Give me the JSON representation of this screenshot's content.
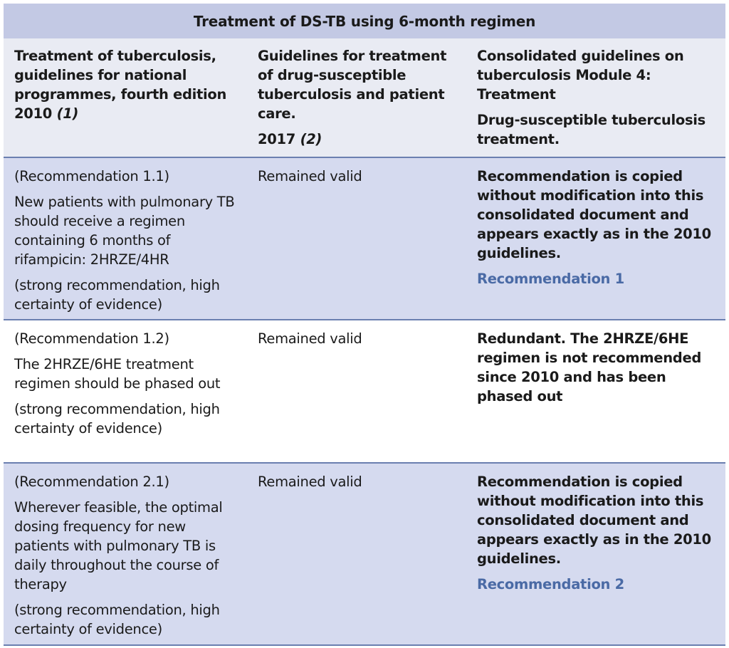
{
  "title": "Treatment of DS-TB using 6-month regimen",
  "headers": {
    "col1": {
      "text": "Treatment of tuberculosis, guidelines for national programmes, fourth edition 2010",
      "ref": "(1)"
    },
    "col2": {
      "text": "Guidelines for treatment of drug-susceptible tuberculosis and patient care.",
      "year": "2017",
      "ref": "(2)"
    },
    "col3": {
      "line1": "Consolidated guidelines on tuberculosis Module 4: Treatment",
      "line2": "Drug-susceptible tuberculosis treatment."
    }
  },
  "rows": [
    {
      "rec_id": "(Recommendation 1.1)",
      "rec_text": "New patients with pulmonary TB should receive a regimen containing 6 months of rifampicin: 2HRZE/4HR",
      "strength": "(strong recommendation, high certainty of evidence)",
      "status_2017": "Remained valid",
      "consolidated": "Recommendation is copied without modification into this consolidated document and appears exactly as in the 2010 guidelines.",
      "link": "Recommendation 1"
    },
    {
      "rec_id": "(Recommendation 1.2)",
      "rec_text": "The 2HRZE/6HE treatment regimen should be phased out",
      "strength": "(strong recommendation, high certainty of evidence)",
      "status_2017": "Remained valid",
      "consolidated": "Redundant. The 2HRZE/6HE regimen is not recommended since 2010 and has been phased out",
      "link": ""
    },
    {
      "rec_id": "(Recommendation 2.1)",
      "rec_text": "Wherever feasible, the optimal dosing frequency for new patients with pulmonary TB is daily throughout the course of therapy",
      "strength": "(strong recommendation, high certainty of evidence)",
      "status_2017": "Remained valid",
      "consolidated": "Recommendation is copied without modification into this consolidated document and appears exactly as in the 2010 guidelines.",
      "link": "Recommendation 2"
    }
  ]
}
